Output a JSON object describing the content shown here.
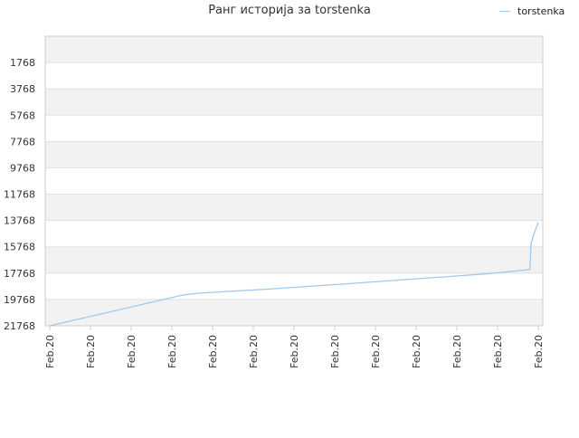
{
  "chart_data": {
    "type": "line",
    "title": "Ранг историја за torstenka",
    "xlabel": "",
    "ylabel": "",
    "x_ticks": [
      "Feb.20",
      "Feb.20",
      "Feb.20",
      "Feb.20",
      "Feb.20",
      "Feb.20",
      "Feb.20",
      "Feb.20",
      "Feb.20",
      "Feb.20",
      "Feb.20",
      "Feb.20",
      "Feb.20"
    ],
    "y_ticks": [
      1768,
      3768,
      5768,
      7768,
      9768,
      11768,
      13768,
      15768,
      17768,
      19768,
      21768
    ],
    "y_axis_inverted": true,
    "ylim": [
      21768,
      -232
    ],
    "xlim": [
      0,
      1
    ],
    "grid": true,
    "legend_position": "top-right",
    "series": [
      {
        "name": "torstenka",
        "color": "#9ec9ec",
        "x": [
          0.0,
          0.27,
          0.3,
          0.45,
          0.6,
          0.75,
          0.9,
          0.983,
          0.985,
          0.99,
          1.0
        ],
        "y": [
          21768,
          19450,
          19300,
          18980,
          18600,
          18200,
          17800,
          17500,
          15600,
          14900,
          13900
        ]
      }
    ]
  },
  "colors": {
    "band_fill": "#f2f2f2",
    "grid_line": "#e2e2e2",
    "axis_line": "#cccccc",
    "tick_label": "#333333"
  }
}
